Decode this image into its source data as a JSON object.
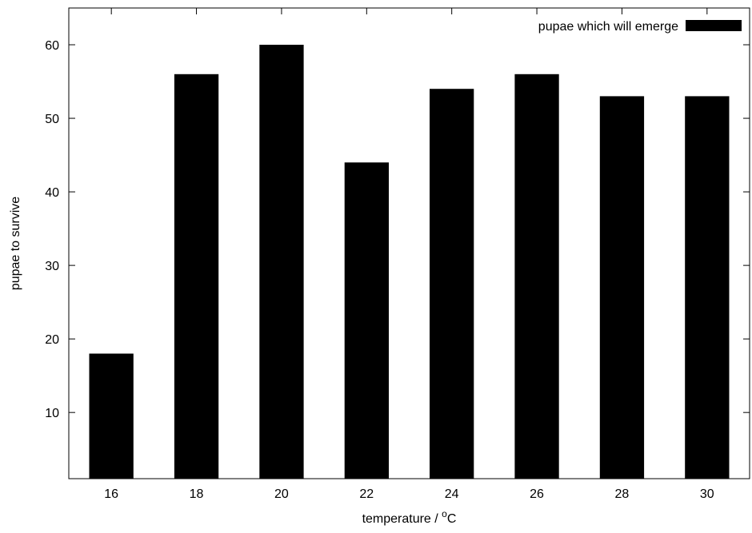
{
  "chart_data": {
    "type": "bar",
    "title": "",
    "xlabel": "temperature / ",
    "xlabel_sup": "o",
    "xlabel_unit": "C",
    "ylabel": "pupae to survive",
    "categories": [
      "16",
      "18",
      "20",
      "22",
      "24",
      "26",
      "28",
      "30"
    ],
    "series": [
      {
        "name": "pupae which will emerge",
        "values": [
          18,
          56,
          60,
          44,
          54,
          56,
          53,
          53
        ],
        "color": "#000000"
      }
    ],
    "ylim": [
      1,
      65
    ],
    "yticks": [
      10,
      20,
      30,
      40,
      50,
      60
    ],
    "legend_position": "top-right",
    "grid": false
  }
}
